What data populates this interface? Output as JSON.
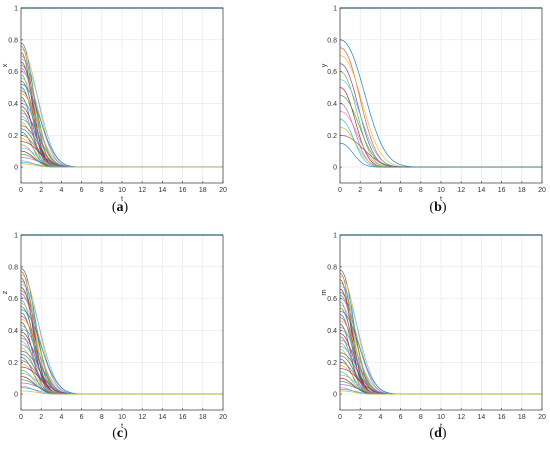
{
  "chart_data": [
    {
      "type": "line",
      "caption": "a",
      "xlabel": "t",
      "ylabel": "x",
      "xlim": [
        0,
        20
      ],
      "ylim": [
        -0.1,
        1
      ],
      "xticks": [
        "0",
        "2",
        "4",
        "6",
        "8",
        "10",
        "12",
        "14",
        "16",
        "18",
        "20"
      ],
      "yticks": [
        "0",
        "0.2",
        "0.4",
        "0.6",
        "0.8",
        "1"
      ],
      "grid": true,
      "curve_family": {
        "count": 40,
        "initial_values": [
          0.78,
          0.76,
          0.74,
          0.72,
          0.7,
          0.68,
          0.66,
          0.64,
          0.62,
          0.6,
          0.58,
          0.56,
          0.54,
          0.52,
          0.5,
          0.48,
          0.46,
          0.44,
          0.42,
          0.4,
          0.38,
          0.36,
          0.34,
          0.32,
          0.3,
          0.28,
          0.26,
          0.24,
          0.22,
          0.2,
          0.18,
          0.16,
          0.14,
          0.12,
          0.1,
          0.08,
          0.06,
          0.04,
          0.03,
          0.02
        ],
        "decay_time": [
          1.7,
          1.5,
          2.2,
          1.4,
          1.9,
          2.4,
          1.6,
          2.0,
          1.8,
          2.3,
          1.5,
          2.1,
          1.7,
          2.5,
          1.6,
          1.9,
          2.2,
          1.4,
          2.0,
          2.4,
          1.8,
          1.5,
          2.3,
          1.7,
          2.1,
          1.6,
          2.2,
          1.9,
          1.5,
          2.0,
          1.8,
          2.4,
          1.6,
          2.1,
          1.7,
          1.9,
          2.3,
          1.5,
          2.0,
          1.8
        ],
        "steady_state": 0
      },
      "horizontal_line": {
        "y": 1,
        "color": "#2a9fc6"
      }
    },
    {
      "type": "line",
      "caption": "b",
      "xlabel": "t",
      "ylabel": "y",
      "xlim": [
        0,
        20
      ],
      "ylim": [
        -0.1,
        1
      ],
      "xticks": [
        "0",
        "2",
        "4",
        "6",
        "8",
        "10",
        "12",
        "14",
        "16",
        "18",
        "20"
      ],
      "yticks": [
        "0",
        "0.2",
        "0.4",
        "0.6",
        "0.8",
        "1"
      ],
      "grid": true,
      "curve_family": {
        "count": 14,
        "initial_values": [
          0.8,
          0.75,
          0.7,
          0.65,
          0.6,
          0.55,
          0.5,
          0.45,
          0.4,
          0.35,
          0.3,
          0.25,
          0.2,
          0.15
        ],
        "decay_time": [
          3.2,
          2.6,
          2.9,
          2.4,
          2.2,
          2.7,
          2.0,
          2.5,
          1.9,
          2.3,
          1.8,
          2.1,
          3.0,
          1.7
        ],
        "steady_state": 0
      },
      "horizontal_line": {
        "y": 1,
        "color": "#2a9fc6"
      }
    },
    {
      "type": "line",
      "caption": "c",
      "xlabel": "t",
      "ylabel": "z",
      "xlim": [
        0,
        20
      ],
      "ylim": [
        -0.1,
        1
      ],
      "xticks": [
        "0",
        "2",
        "4",
        "6",
        "8",
        "10",
        "12",
        "14",
        "16",
        "18",
        "20"
      ],
      "yticks": [
        "0",
        "0.2",
        "0.4",
        "0.6",
        "0.8",
        "1"
      ],
      "grid": true,
      "curve_family": {
        "count": 40,
        "initial_values": [
          0.79,
          0.77,
          0.75,
          0.73,
          0.71,
          0.69,
          0.67,
          0.65,
          0.63,
          0.61,
          0.59,
          0.57,
          0.55,
          0.53,
          0.51,
          0.49,
          0.47,
          0.45,
          0.43,
          0.41,
          0.39,
          0.37,
          0.35,
          0.33,
          0.31,
          0.29,
          0.27,
          0.25,
          0.23,
          0.21,
          0.19,
          0.17,
          0.15,
          0.13,
          0.11,
          0.09,
          0.07,
          0.05,
          0.04,
          0.02
        ],
        "decay_time": [
          1.9,
          1.6,
          2.3,
          1.5,
          2.0,
          2.5,
          1.7,
          2.1,
          1.9,
          2.4,
          1.6,
          2.2,
          1.8,
          2.6,
          1.7,
          2.0,
          2.3,
          1.5,
          2.1,
          2.5,
          1.9,
          1.6,
          2.4,
          1.8,
          2.2,
          1.7,
          2.3,
          2.0,
          1.6,
          2.1,
          1.9,
          2.5,
          1.7,
          2.2,
          1.8,
          2.0,
          2.4,
          1.6,
          2.1,
          1.9
        ],
        "steady_state": 0
      },
      "horizontal_line": {
        "y": 1,
        "color": "#2a9fc6"
      }
    },
    {
      "type": "line",
      "caption": "d",
      "xlabel": "t",
      "ylabel": "m",
      "xlim": [
        0,
        20
      ],
      "ylim": [
        -0.1,
        1
      ],
      "xticks": [
        "0",
        "2",
        "4",
        "6",
        "8",
        "10",
        "12",
        "14",
        "16",
        "18",
        "20"
      ],
      "yticks": [
        "0",
        "0.2",
        "0.4",
        "0.6",
        "0.8",
        "1"
      ],
      "grid": true,
      "curve_family": {
        "count": 40,
        "initial_values": [
          0.78,
          0.76,
          0.74,
          0.72,
          0.7,
          0.68,
          0.66,
          0.64,
          0.62,
          0.6,
          0.58,
          0.56,
          0.54,
          0.52,
          0.5,
          0.48,
          0.46,
          0.44,
          0.42,
          0.4,
          0.38,
          0.36,
          0.34,
          0.32,
          0.3,
          0.28,
          0.26,
          0.24,
          0.22,
          0.2,
          0.18,
          0.16,
          0.14,
          0.12,
          0.1,
          0.08,
          0.06,
          0.04,
          0.03,
          0.02
        ],
        "decay_time": [
          1.8,
          1.5,
          2.2,
          1.4,
          1.9,
          2.4,
          1.6,
          2.0,
          1.8,
          2.3,
          1.5,
          2.1,
          1.7,
          2.5,
          1.6,
          1.9,
          2.2,
          1.4,
          2.0,
          2.4,
          1.8,
          1.5,
          2.3,
          1.7,
          2.1,
          1.6,
          2.2,
          1.9,
          1.5,
          2.0,
          1.8,
          2.4,
          1.6,
          2.1,
          1.7,
          1.9,
          2.3,
          1.5,
          2.0,
          1.8
        ],
        "steady_state": 0
      },
      "horizontal_line": {
        "y": 1,
        "color": "#2a9fc6"
      }
    }
  ],
  "palette": [
    "#0072bd",
    "#d95319",
    "#edb120",
    "#7e2f8e",
    "#77ac30",
    "#4dbeee",
    "#a2142f",
    "#2ca02c",
    "#9467bd",
    "#e377c2",
    "#17becf",
    "#bcbd22",
    "#8c564b",
    "#1f77b4"
  ],
  "colors": {
    "grid": "#e6e6e6",
    "axis": "#333333"
  }
}
